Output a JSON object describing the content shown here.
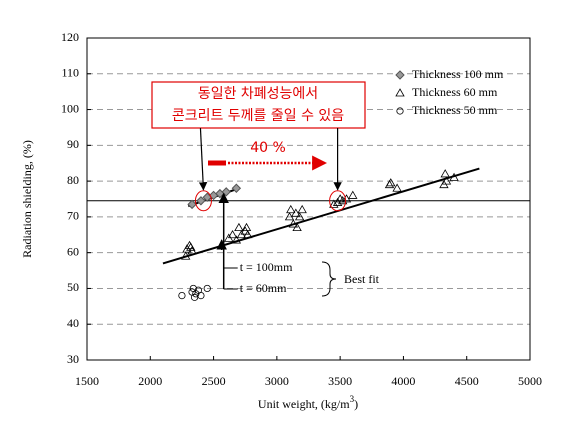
{
  "chart_data": {
    "type": "scatter",
    "y_label": "Radiation shielding, (%)",
    "x_label": [
      "Unit weight, (kg/m",
      "3",
      ")"
    ],
    "xlim": [
      1500,
      5000
    ],
    "xticks": [
      1500,
      2000,
      2500,
      3000,
      3500,
      4000,
      4500,
      5000
    ],
    "ylim": [
      30,
      120
    ],
    "yticks": [
      30,
      40,
      50,
      60,
      70,
      80,
      90,
      100,
      110,
      120
    ],
    "grid": true,
    "legend": "upper right",
    "series": [
      {
        "name": "Thickness 100 mm",
        "marker": "diamond",
        "color": "#999999",
        "x": [
          2330,
          2400,
          2450,
          2500,
          2550,
          2600,
          2680
        ],
        "values": [
          73.5,
          74.5,
          75.5,
          76,
          76.5,
          77,
          78
        ]
      },
      {
        "name": "Thickness 60 mm",
        "marker": "triangle",
        "color": "#000000",
        "x": [
          2280,
          2290,
          2310,
          2320,
          2330,
          2620,
          2650,
          2680,
          2700,
          2720,
          2750,
          2760,
          2770,
          3100,
          3110,
          3130,
          3150,
          3160,
          3180,
          3200,
          3450,
          3480,
          3500,
          3520,
          3550,
          3600,
          3890,
          3900,
          3950,
          4320,
          4330,
          4340,
          4400
        ],
        "values": [
          59,
          61,
          62,
          61.5,
          60.5,
          64,
          65,
          63.5,
          67,
          65,
          66,
          67,
          65,
          70,
          72,
          68,
          71,
          67,
          70,
          72,
          73.5,
          74,
          75,
          74.5,
          75,
          76,
          79,
          79.5,
          78,
          79,
          82,
          80,
          81
        ]
      },
      {
        "name": "Thickness 50 mm",
        "marker": "circle",
        "color": "#000000",
        "x": [
          2250,
          2330,
          2340,
          2350,
          2360,
          2380,
          2400,
          2450
        ],
        "values": [
          48,
          49,
          50,
          47.5,
          48.5,
          49.5,
          48,
          50
        ]
      }
    ],
    "fit_lines": [
      {
        "name": "t = 100mm",
        "x": [
          2300,
          2700
        ],
        "values": [
          73,
          78
        ]
      },
      {
        "name": "t = 60mm",
        "x": [
          2100,
          4600
        ],
        "values": [
          57,
          83.5
        ]
      }
    ],
    "fit_label": "Best fit",
    "reference_line": 74.5,
    "annotation": [
      "동일한 차폐성능에서",
      "콘크리트 두께를 줄일 수 있음"
    ],
    "reduction_label": "40 %"
  }
}
